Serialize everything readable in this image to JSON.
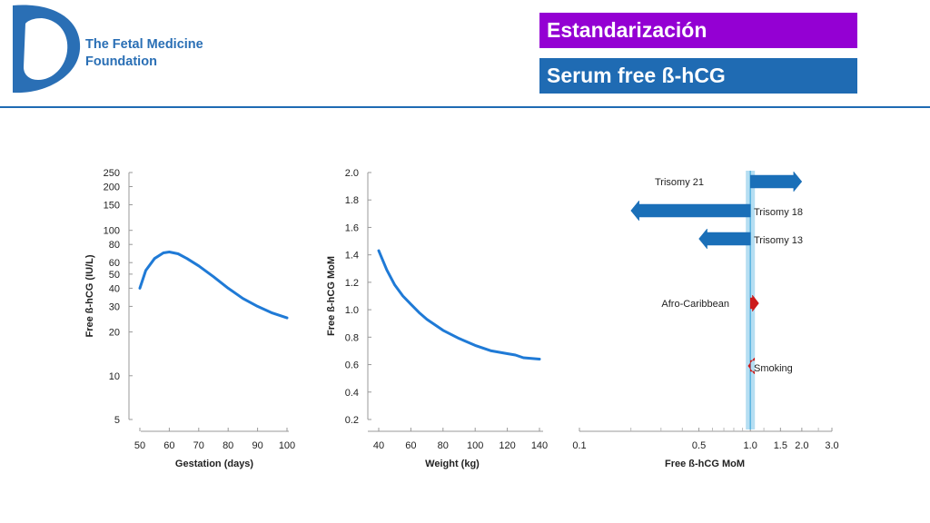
{
  "header": {
    "org_line1": "The Fetal Medicine",
    "org_line2": "Foundation",
    "title1": "Estandarización",
    "title2": "Serum free ß-hCG"
  },
  "colors": {
    "brand_blue": "#2a6fb5",
    "title1_bg": "#9400d3",
    "title2_bg": "#1f6bb3",
    "curve": "#1f7ad6",
    "arrow_blue": "#1a6fb8",
    "arrow_red": "#cc1a1a",
    "band": "#a8d8f0"
  },
  "chart_data": [
    {
      "type": "line",
      "xlabel": "Gestation (days)",
      "ylabel": "Free ß-hCG (IU/L)",
      "xlim": [
        50,
        100
      ],
      "ylim": [
        5,
        250
      ],
      "y_scale": "log",
      "x_ticks": [
        "50",
        "60",
        "70",
        "80",
        "90",
        "100"
      ],
      "y_ticks": [
        "5",
        "10",
        "20",
        "30",
        "40",
        "50",
        "60",
        "80",
        "100",
        "150",
        "200",
        "250"
      ],
      "series": [
        {
          "x": [
            50,
            52,
            55,
            58,
            60,
            63,
            66,
            70,
            75,
            80,
            85,
            90,
            95,
            100
          ],
          "y": [
            40,
            53,
            64,
            70,
            71,
            69,
            64,
            57,
            48,
            40,
            34,
            30,
            27,
            25
          ]
        }
      ]
    },
    {
      "type": "line",
      "xlabel": "Weight (kg)",
      "ylabel": "Free ß-hCG MoM",
      "xlim": [
        40,
        140
      ],
      "ylim": [
        0.2,
        2.0
      ],
      "x_ticks": [
        "40",
        "60",
        "80",
        "100",
        "120",
        "140"
      ],
      "y_ticks": [
        "0.2",
        "0.4",
        "0.6",
        "0.8",
        "1.0",
        "1.2",
        "1.4",
        "1.6",
        "1.8",
        "2.0"
      ],
      "series": [
        {
          "x": [
            40,
            45,
            50,
            55,
            60,
            65,
            70,
            80,
            90,
            100,
            110,
            120,
            125,
            130,
            140
          ],
          "y": [
            1.43,
            1.29,
            1.18,
            1.1,
            1.04,
            0.98,
            0.93,
            0.85,
            0.79,
            0.74,
            0.7,
            0.68,
            0.67,
            0.65,
            0.64
          ]
        }
      ]
    },
    {
      "type": "bar",
      "orientation": "horizontal-arrows",
      "xlabel": "Free ß-hCG MoM",
      "x_scale": "log",
      "xlim": [
        0.1,
        3.0
      ],
      "x_ticks": [
        "0.1",
        "0.5",
        "1.0",
        "1.5",
        "2.0",
        "3.0"
      ],
      "reference_line": 1.0,
      "categories": [
        "Trisomy 21",
        "Trisomy 18",
        "Trisomy 13",
        "Afro-Caribbean",
        "Smoking"
      ],
      "values": [
        2.0,
        0.2,
        0.5,
        1.12,
        0.97
      ],
      "arrow_colors": [
        "blue",
        "blue",
        "blue",
        "red",
        "red"
      ]
    }
  ]
}
